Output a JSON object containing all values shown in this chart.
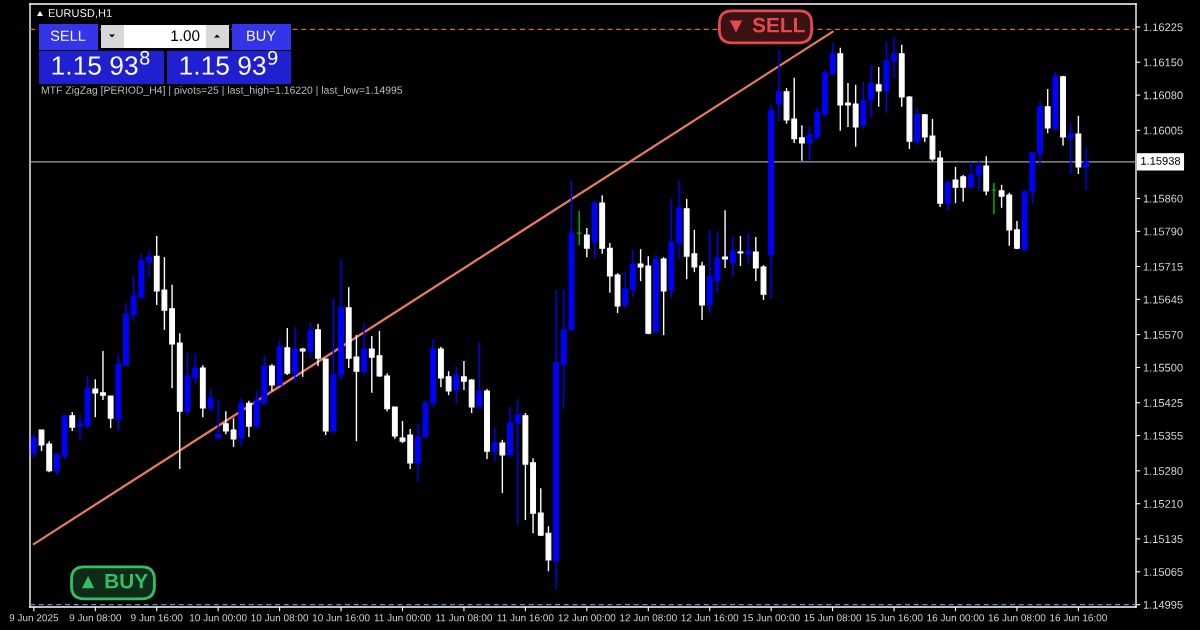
{
  "chart_data": {
    "type": "candlestick",
    "title": "EURUSD,H1",
    "annotations": [
      "MTF ZigZag [PERIOD_H4] | pivots=25 | last_high=1.16220 | last_low=1.14995",
      "SELL",
      "1.00",
      "BUY",
      "1.15 93$^{8}$",
      "1.15 93$^{9}$",
      "▼ SELL",
      "▲ BUY"
    ],
    "categories": [
      "9 Jun 2025",
      null,
      null,
      null,
      null,
      null,
      null,
      null,
      "9 Jun 08:00",
      null,
      null,
      null,
      null,
      null,
      null,
      null,
      "9 Jun 16:00",
      null,
      null,
      null,
      null,
      null,
      null,
      null,
      "10 Jun 00:00",
      null,
      null,
      null,
      null,
      null,
      null,
      null,
      "10 Jun 08:00",
      null,
      null,
      null,
      null,
      null,
      null,
      null,
      "10 Jun 16:00",
      null,
      null,
      null,
      null,
      null,
      null,
      null,
      "11 Jun 00:00",
      null,
      null,
      null,
      null,
      null,
      null,
      null,
      "11 Jun 08:00",
      null,
      null,
      null,
      null,
      null,
      null,
      null,
      "11 Jun 16:00",
      null,
      null,
      null,
      null,
      null,
      null,
      null,
      "12 Jun 00:00",
      null,
      null,
      null,
      null,
      null,
      null,
      null,
      "12 Jun 08:00",
      null,
      null,
      null,
      null,
      null,
      null,
      null,
      "12 Jun 16:00",
      null,
      null,
      null,
      null,
      null,
      null,
      null,
      "15 Jun 00:00",
      null,
      null,
      null,
      null,
      null,
      null,
      null,
      "15 Jun 08:00",
      null,
      null,
      null,
      null,
      null,
      null,
      null,
      "15 Jun 16:00",
      null,
      null,
      null,
      null,
      null,
      null,
      null,
      "16 Jun 00:00",
      null,
      null,
      null,
      null,
      null,
      null,
      null,
      "16 Jun 08:00",
      null,
      null,
      null,
      null,
      null,
      null,
      null,
      "16 Jun 16:00",
      null
    ],
    "ohlc": [
      [
        1.15318,
        1.1536,
        1.15307,
        1.1535
      ],
      [
        1.15367,
        1.15367,
        1.15322,
        1.15335
      ],
      [
        1.15337,
        1.15343,
        1.15277,
        1.1528
      ],
      [
        1.1528,
        1.15318,
        1.15271,
        1.15314
      ],
      [
        1.15311,
        1.15397,
        1.15305,
        1.15397
      ],
      [
        1.15397,
        1.15405,
        1.15365,
        1.15373
      ],
      [
        1.15375,
        1.15401,
        1.15346,
        1.1538
      ],
      [
        1.15377,
        1.15482,
        1.15369,
        1.15456
      ],
      [
        1.15454,
        1.15475,
        1.15394,
        1.15446
      ],
      [
        1.15446,
        1.15535,
        1.15431,
        1.15441
      ],
      [
        1.15439,
        1.15439,
        1.15371,
        1.15392
      ],
      [
        1.1539,
        1.15527,
        1.15365,
        1.15507
      ],
      [
        1.15505,
        1.15637,
        1.15503,
        1.15614
      ],
      [
        1.15612,
        1.15695,
        1.15599,
        1.15652
      ],
      [
        1.1565,
        1.15742,
        1.1565,
        1.15727
      ],
      [
        1.15725,
        1.1575,
        1.15691,
        1.15735
      ],
      [
        1.15737,
        1.1578,
        1.15633,
        1.15663
      ],
      [
        1.15665,
        1.15735,
        1.1558,
        1.15622
      ],
      [
        1.15625,
        1.15676,
        1.15456,
        1.1555
      ],
      [
        1.15552,
        1.15573,
        1.15284,
        1.15407
      ],
      [
        1.15407,
        1.15531,
        1.15399,
        1.15482
      ],
      [
        1.1548,
        1.15531,
        1.15463,
        1.15499
      ],
      [
        1.15499,
        1.15505,
        1.15394,
        1.15414
      ],
      [
        1.15414,
        1.15456,
        1.15407,
        1.15435
      ],
      [
        1.1535,
        1.15431,
        1.1535,
        1.15358
      ],
      [
        1.1538,
        1.15407,
        1.15358,
        1.15365
      ],
      [
        1.15367,
        1.15392,
        1.15331,
        1.15348
      ],
      [
        1.1535,
        1.15435,
        1.15331,
        1.15424
      ],
      [
        1.15424,
        1.15429,
        1.15352,
        1.15375
      ],
      [
        1.15375,
        1.1545,
        1.15371,
        1.15431
      ],
      [
        1.15424,
        1.15525,
        1.1542,
        1.15503
      ],
      [
        1.15503,
        1.15507,
        1.1545,
        1.15463
      ],
      [
        1.15463,
        1.15556,
        1.15461,
        1.15544
      ],
      [
        1.15542,
        1.15584,
        1.15484,
        1.15488
      ],
      [
        1.15486,
        1.15586,
        1.15467,
        1.15539
      ],
      [
        1.15539,
        1.15542,
        1.1548,
        1.15535
      ],
      [
        1.15535,
        1.15597,
        1.1552,
        1.15578
      ],
      [
        1.1558,
        1.15593,
        1.15503,
        1.1552
      ],
      [
        1.15518,
        1.15518,
        1.15356,
        1.15365
      ],
      [
        1.15365,
        1.15648,
        1.1536,
        1.15484
      ],
      [
        1.15484,
        1.15731,
        1.15471,
        1.15627
      ],
      [
        1.15627,
        1.15671,
        1.15499,
        1.1552
      ],
      [
        1.15522,
        1.15569,
        1.15343,
        1.15492
      ],
      [
        1.15492,
        1.15595,
        1.15484,
        1.15539
      ],
      [
        1.15539,
        1.15567,
        1.15446,
        1.15522
      ],
      [
        1.15525,
        1.15578,
        1.1548,
        1.15482
      ],
      [
        1.15482,
        1.15488,
        1.15407,
        1.15412
      ],
      [
        1.15416,
        1.15416,
        1.15348,
        1.15354
      ],
      [
        1.1535,
        1.15386,
        1.15339,
        1.15343
      ],
      [
        1.15356,
        1.15369,
        1.15284,
        1.15297
      ],
      [
        1.15297,
        1.1538,
        1.15256,
        1.15352
      ],
      [
        1.15352,
        1.15431,
        1.15352,
        1.15424
      ],
      [
        1.15424,
        1.15561,
        1.15416,
        1.15539
      ],
      [
        1.15539,
        1.15544,
        1.15458,
        1.15478
      ],
      [
        1.1548,
        1.15492,
        1.15441,
        1.1545
      ],
      [
        1.15452,
        1.15503,
        1.15424,
        1.15484
      ],
      [
        1.1548,
        1.15514,
        1.15452,
        1.15471
      ],
      [
        1.15473,
        1.15475,
        1.15403,
        1.15416
      ],
      [
        1.15416,
        1.15554,
        1.15414,
        1.1545
      ],
      [
        1.1545,
        1.15454,
        1.15305,
        1.15322
      ],
      [
        1.15322,
        1.15373,
        1.15299,
        1.15339
      ],
      [
        1.15339,
        1.15346,
        1.15233,
        1.15314
      ],
      [
        1.15314,
        1.15416,
        1.15309,
        1.15382
      ],
      [
        1.15382,
        1.15433,
        1.15164,
        1.15399
      ],
      [
        1.15397,
        1.15403,
        1.15175,
        1.15294
      ],
      [
        1.15297,
        1.15307,
        1.15147,
        1.1519
      ],
      [
        1.1519,
        1.15243,
        1.15141,
        1.15143
      ],
      [
        1.15147,
        1.15162,
        1.15066,
        1.1509
      ],
      [
        1.15088,
        1.15665,
        1.15028,
        1.1551
      ],
      [
        1.15507,
        1.15667,
        1.15412,
        1.1558
      ],
      [
        1.1558,
        1.15897,
        1.1558,
        1.15786
      ],
      [
        1.15786,
        1.15833,
        1.15761,
        1.15786
      ],
      [
        1.15782,
        1.15797,
        1.15735,
        1.15754
      ],
      [
        1.15767,
        1.15855,
        1.15731,
        1.1585
      ],
      [
        1.1585,
        1.15867,
        1.15742,
        1.15754
      ],
      [
        1.15754,
        1.15765,
        1.15659,
        1.15695
      ],
      [
        1.15697,
        1.15701,
        1.15616,
        1.15631
      ],
      [
        1.15633,
        1.15705,
        1.15625,
        1.15667
      ],
      [
        1.15667,
        1.15752,
        1.1565,
        1.1572
      ],
      [
        1.1572,
        1.15752,
        1.15684,
        1.15714
      ],
      [
        1.15716,
        1.15737,
        1.15571,
        1.15573
      ],
      [
        1.15576,
        1.1574,
        1.15576,
        1.15731
      ],
      [
        1.15731,
        1.15735,
        1.15569,
        1.15663
      ],
      [
        1.15665,
        1.15859,
        1.1565,
        1.15767
      ],
      [
        1.15765,
        1.15897,
        1.15731,
        1.1584
      ],
      [
        1.15838,
        1.15859,
        1.15688,
        1.15737
      ],
      [
        1.15742,
        1.15793,
        1.15703,
        1.15714
      ],
      [
        1.15716,
        1.15725,
        1.15601,
        1.15633
      ],
      [
        1.15633,
        1.15793,
        1.15616,
        1.15693
      ],
      [
        1.15686,
        1.15791,
        1.15659,
        1.15733
      ],
      [
        1.15735,
        1.15835,
        1.15712,
        1.15731
      ],
      [
        1.15723,
        1.1578,
        1.15693,
        1.15748
      ],
      [
        1.15746,
        1.1578,
        1.15716,
        1.15744
      ],
      [
        1.15742,
        1.15786,
        1.1572,
        1.15748
      ],
      [
        1.15746,
        1.15778,
        1.15684,
        1.15712
      ],
      [
        1.15714,
        1.15718,
        1.15644,
        1.15656
      ],
      [
        1.1574,
        1.16059,
        1.15648,
        1.16048
      ],
      [
        1.16061,
        1.16176,
        1.16025,
        1.16087
      ],
      [
        1.16087,
        1.16095,
        1.16019,
        1.16027
      ],
      [
        1.16029,
        1.16117,
        1.15978,
        1.15987
      ],
      [
        1.15989,
        1.16016,
        1.1594,
        1.15978
      ],
      [
        1.15978,
        1.16014,
        1.1594,
        1.15995
      ],
      [
        1.15991,
        1.16053,
        1.15985,
        1.16044
      ],
      [
        1.1604,
        1.16134,
        1.16034,
        1.16127
      ],
      [
        1.16125,
        1.16191,
        1.16125,
        1.16168
      ],
      [
        1.16168,
        1.16181,
        1.16004,
        1.16059
      ],
      [
        1.16063,
        1.16106,
        1.16012,
        1.16059
      ],
      [
        1.16061,
        1.16102,
        1.1597,
        1.16012
      ],
      [
        1.16016,
        1.16108,
        1.16008,
        1.16068
      ],
      [
        1.1607,
        1.16144,
        1.16031,
        1.16104
      ],
      [
        1.16102,
        1.1614,
        1.16055,
        1.16089
      ],
      [
        1.16089,
        1.16195,
        1.16042,
        1.16153
      ],
      [
        1.16153,
        1.16204,
        1.16117,
        1.16168
      ],
      [
        1.16168,
        1.16187,
        1.16055,
        1.16076
      ],
      [
        1.16076,
        1.16078,
        1.15965,
        1.15982
      ],
      [
        1.15982,
        1.16053,
        1.15974,
        1.16038
      ],
      [
        1.16038,
        1.1604,
        1.1598,
        1.15991
      ],
      [
        1.15993,
        1.16029,
        1.1594,
        1.15944
      ],
      [
        1.15946,
        1.15961,
        1.15842,
        1.1585
      ],
      [
        1.1585,
        1.15899,
        1.15835,
        1.15893
      ],
      [
        1.15899,
        1.15927,
        1.1585,
        1.15884
      ],
      [
        1.15906,
        1.1591,
        1.15853,
        1.15884
      ],
      [
        1.15884,
        1.15938,
        1.15882,
        1.1591
      ],
      [
        1.1591,
        1.1594,
        1.15876,
        1.15929
      ],
      [
        1.15929,
        1.1595,
        1.15867,
        1.15876
      ],
      [
        1.15878,
        1.15893,
        1.15827,
        1.15878
      ],
      [
        1.15876,
        1.15889,
        1.1584,
        1.15865
      ],
      [
        1.15867,
        1.15872,
        1.15759,
        1.15793
      ],
      [
        1.15793,
        1.15812,
        1.15752,
        1.15754
      ],
      [
        1.15752,
        1.15876,
        1.15748,
        1.15874
      ],
      [
        1.15874,
        1.15957,
        1.1585,
        1.15957
      ],
      [
        1.15957,
        1.16068,
        1.15931,
        1.16055
      ],
      [
        1.16055,
        1.16093,
        1.15999,
        1.1601
      ],
      [
        1.16008,
        1.16129,
        1.16006,
        1.16119
      ],
      [
        1.16119,
        1.16121,
        1.15972,
        1.15991
      ],
      [
        1.15989,
        1.16021,
        1.15912,
        1.15997
      ],
      [
        1.15997,
        1.16036,
        1.15912,
        1.15927
      ],
      [
        1.15927,
        1.1597,
        1.15878,
        1.15938
      ]
    ],
    "colors": [
      "#0000ff",
      "#ffffff",
      "#ffffff",
      "#0000ff",
      "#0000ff",
      "#ffffff",
      "#0000ff",
      "#0000ff",
      "#ffffff",
      "#ffffff",
      "#ffffff",
      "#0000ff",
      "#0000ff",
      "#0000ff",
      "#0000ff",
      "#0000ff",
      "#ffffff",
      "#ffffff",
      "#ffffff",
      "#ffffff",
      "#0000ff",
      "#0000ff",
      "#ffffff",
      "#0000ff",
      "#0000ff",
      "#ffffff",
      "#ffffff",
      "#0000ff",
      "#ffffff",
      "#0000ff",
      "#0000ff",
      "#ffffff",
      "#0000ff",
      "#ffffff",
      "#0000ff",
      "#ffffff",
      "#0000ff",
      "#ffffff",
      "#ffffff",
      "#0000ff",
      "#0000ff",
      "#ffffff",
      "#ffffff",
      "#0000ff",
      "#ffffff",
      "#ffffff",
      "#ffffff",
      "#ffffff",
      "#ffffff",
      "#ffffff",
      "#0000ff",
      "#0000ff",
      "#0000ff",
      "#ffffff",
      "#ffffff",
      "#0000ff",
      "#ffffff",
      "#ffffff",
      "#0000ff",
      "#ffffff",
      "#0000ff",
      "#ffffff",
      "#0000ff",
      "#0000ff",
      "#ffffff",
      "#ffffff",
      "#ffffff",
      "#ffffff",
      "#0000ff",
      "#0000ff",
      "#0000ff",
      "#00c000",
      "#ffffff",
      "#0000ff",
      "#ffffff",
      "#ffffff",
      "#ffffff",
      "#0000ff",
      "#0000ff",
      "#ffffff",
      "#ffffff",
      "#0000ff",
      "#ffffff",
      "#0000ff",
      "#0000ff",
      "#ffffff",
      "#ffffff",
      "#ffffff",
      "#0000ff",
      "#0000ff",
      "#ffffff",
      "#0000ff",
      "#ffffff",
      "#0000ff",
      "#ffffff",
      "#ffffff",
      "#0000ff",
      "#0000ff",
      "#ffffff",
      "#ffffff",
      "#ffffff",
      "#0000ff",
      "#0000ff",
      "#0000ff",
      "#0000ff",
      "#ffffff",
      "#ffffff",
      "#ffffff",
      "#0000ff",
      "#0000ff",
      "#ffffff",
      "#0000ff",
      "#0000ff",
      "#ffffff",
      "#ffffff",
      "#0000ff",
      "#ffffff",
      "#ffffff",
      "#ffffff",
      "#0000ff",
      "#ffffff",
      "#ffffff",
      "#0000ff",
      "#0000ff",
      "#ffffff",
      "#00c000",
      "#ffffff",
      "#ffffff",
      "#ffffff",
      "#0000ff",
      "#0000ff",
      "#0000ff",
      "#ffffff",
      "#0000ff",
      "#ffffff",
      "#0000ff",
      "#ffffff",
      "#0000ff"
    ],
    "series": [
      {
        "type": "line",
        "color": "#f07860",
        "x": [
          "9 Jun 2025",
          "15 Jun 08:00"
        ],
        "values": [
          1.15124,
          1.16215
        ]
      }
    ],
    "ref_lines": [
      {
        "axis": "y",
        "value": 1.15938,
        "label": "1.15938",
        "color": "#a0a0a0"
      },
      {
        "axis": "y",
        "value": 1.1622,
        "color": "#e06048",
        "line_style": "dashed"
      },
      {
        "axis": "y",
        "value": 1.14995,
        "color": "#6a8cc8",
        "line_style": "dashed"
      }
    ],
    "ylim": [
      1.1499,
      1.16274
    ],
    "yticks": [
      {
        "value": 1.16225,
        "label": "1.16225"
      },
      {
        "value": 1.1615,
        "label": "1.16150"
      },
      {
        "value": 1.1608,
        "label": "1.16080"
      },
      {
        "value": 1.16005,
        "label": "1.16005"
      },
      {
        "value": 1.1586,
        "label": "1.15860"
      },
      {
        "value": 1.1579,
        "label": "1.15790"
      },
      {
        "value": 1.15715,
        "label": "1.15715"
      },
      {
        "value": 1.15645,
        "label": "1.15645"
      },
      {
        "value": 1.1557,
        "label": "1.15570"
      },
      {
        "value": 1.155,
        "label": "1.15500"
      },
      {
        "value": 1.15425,
        "label": "1.15425"
      },
      {
        "value": 1.15355,
        "label": "1.15355"
      },
      {
        "value": 1.1528,
        "label": "1.15280"
      },
      {
        "value": 1.1521,
        "label": "1.15210"
      },
      {
        "value": 1.15135,
        "label": "1.15135"
      },
      {
        "value": 1.15065,
        "label": "1.15065"
      },
      {
        "value": 1.14995,
        "label": "1.14995"
      }
    ]
  }
}
